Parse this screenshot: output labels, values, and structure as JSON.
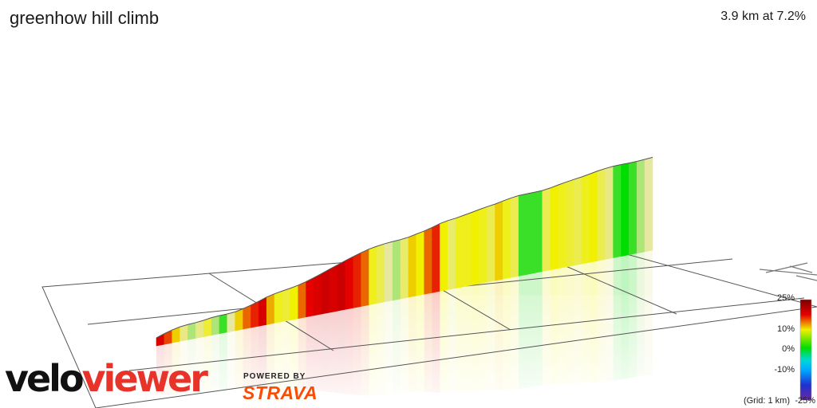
{
  "header": {
    "title": "greenhow hill climb",
    "stats": "3.9 km at 7.2%"
  },
  "brand": {
    "logo_part1": "velo",
    "logo_part2": "viewer",
    "powered_by": "POWERED BY",
    "strava": "STRAVA",
    "colors": {
      "viewer_red": "#e8332a",
      "strava_orange": "#fc4c02"
    }
  },
  "legend": {
    "ticks": [
      "25%",
      "10%",
      "0%",
      "-10%",
      "-25%"
    ],
    "grid_note": "(Grid: 1 km)"
  },
  "chart_data": {
    "type": "area",
    "distance_km": 3.9,
    "avg_gradient_pct": 7.2,
    "color_scale": [
      {
        "gradient": 25,
        "color": "#7a0000"
      },
      {
        "gradient": 17,
        "color": "#e60000"
      },
      {
        "gradient": 10,
        "color": "#f0f000"
      },
      {
        "gradient": 4,
        "color": "#e6e8a0"
      },
      {
        "gradient": 0,
        "color": "#00dd00"
      },
      {
        "gradient": -5,
        "color": "#00d8d8"
      },
      {
        "gradient": -10,
        "color": "#00aaff"
      },
      {
        "gradient": -17,
        "color": "#2030d0"
      },
      {
        "gradient": -25,
        "color": "#6a2a9a"
      }
    ],
    "gradient_profile": [
      18,
      15,
      11,
      5,
      3,
      5,
      8,
      3,
      1,
      4,
      11,
      14,
      16,
      18,
      12,
      9,
      8,
      10,
      14,
      17,
      18,
      19,
      18,
      19,
      17,
      16,
      14,
      9,
      7,
      4,
      3,
      6,
      11,
      10,
      14,
      16,
      10,
      6,
      9,
      9,
      10,
      9,
      7,
      11,
      9,
      7,
      1,
      1,
      1,
      7,
      10,
      9,
      8,
      7,
      9,
      10,
      7,
      5,
      1,
      0,
      1,
      3,
      4
    ]
  }
}
